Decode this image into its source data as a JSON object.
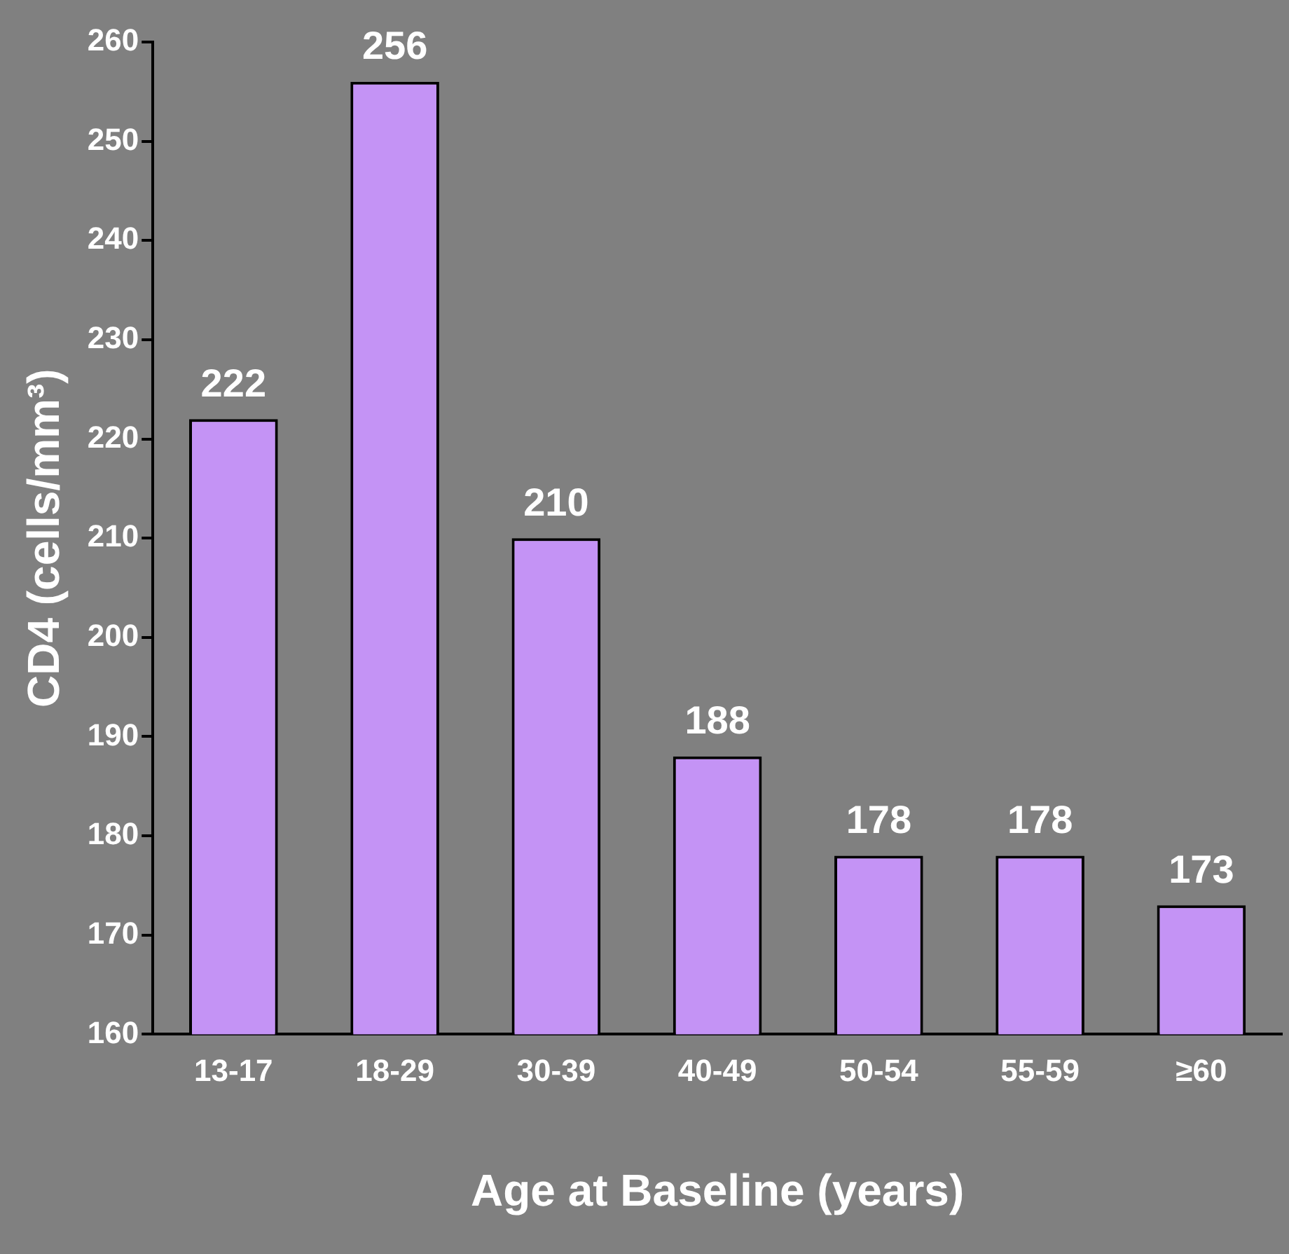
{
  "chart_data": {
    "type": "bar",
    "xlabel": "Age at Baseline (years)",
    "ylabel": "CD4 (cells/mm³)",
    "categories": [
      "13-17",
      "18-29",
      "30-39",
      "40-49",
      "50-54",
      "55-59",
      "≥60"
    ],
    "values": [
      222,
      256,
      210,
      188,
      178,
      178,
      173
    ],
    "color": "#c493f5",
    "ylim": [
      160,
      260
    ],
    "yticks": [
      160,
      170,
      180,
      190,
      200,
      210,
      220,
      230,
      240,
      250,
      260
    ],
    "grid": false,
    "legend": false,
    "data_labels": true
  }
}
